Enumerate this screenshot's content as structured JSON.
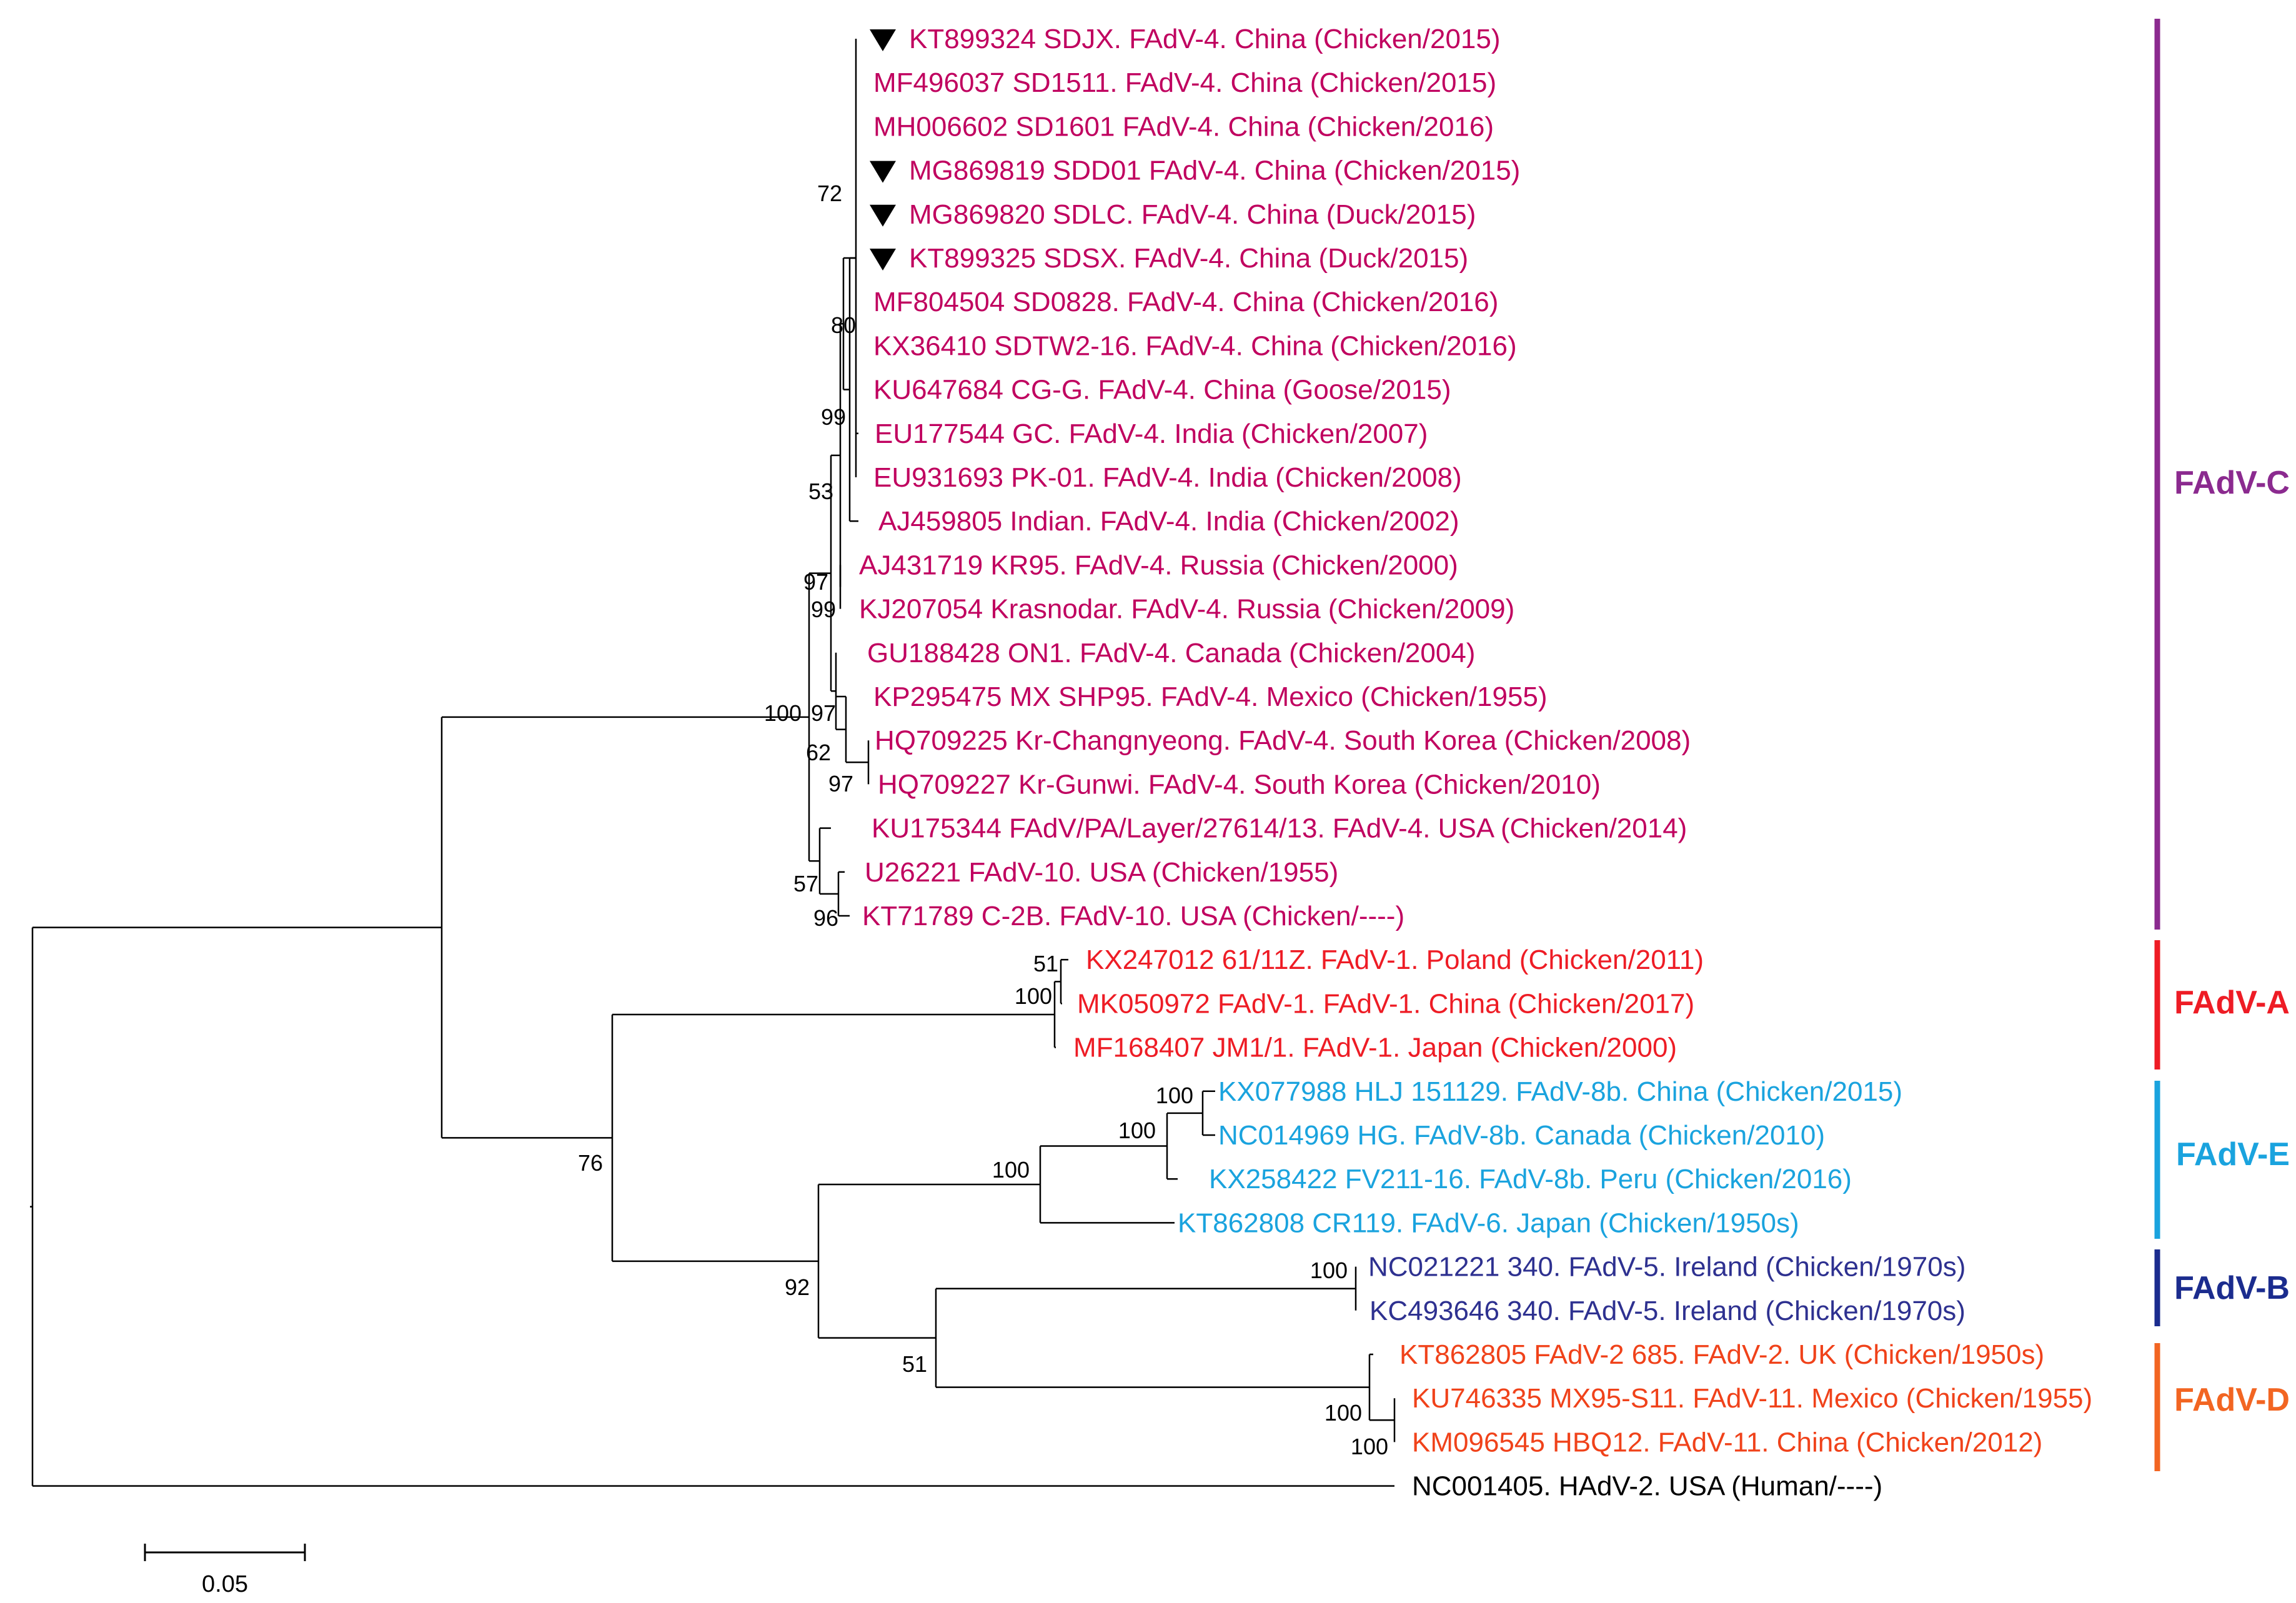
{
  "colors": {
    "FAdV-C": "#c0005f",
    "FAdV-A": "#ee1c25",
    "FAdV-E": "#1aa3de",
    "FAdV-B": "#2e3190",
    "FAdV-D": "#f0421a",
    "outgroup": "#000000",
    "bar_C": "#8b2a8f",
    "bar_A": "#ee1c25",
    "bar_E": "#1aa3de",
    "bar_B": "#1b2c8e",
    "bar_D": "#f26522"
  },
  "taxa": [
    {
      "label": "KT899324 SDJX. FAdV-4. China (Chicken/2015)",
      "group": "FAdV-C",
      "marker": true
    },
    {
      "label": "MF496037 SD1511. FAdV-4. China (Chicken/2015)",
      "group": "FAdV-C",
      "marker": false
    },
    {
      "label": "MH006602 SD1601 FAdV-4. China (Chicken/2016)",
      "group": "FAdV-C",
      "marker": false
    },
    {
      "label": "MG869819 SDD01 FAdV-4. China (Chicken/2015)",
      "group": "FAdV-C",
      "marker": true
    },
    {
      "label": "MG869820 SDLC. FAdV-4. China (Duck/2015)",
      "group": "FAdV-C",
      "marker": true
    },
    {
      "label": "KT899325 SDSX. FAdV-4. China (Duck/2015)",
      "group": "FAdV-C",
      "marker": true
    },
    {
      "label": "MF804504 SD0828. FAdV-4. China (Chicken/2016)",
      "group": "FAdV-C",
      "marker": false
    },
    {
      "label": "KX36410 SDTW2-16. FAdV-4. China (Chicken/2016)",
      "group": "FAdV-C",
      "marker": false
    },
    {
      "label": "KU647684 CG-G. FAdV-4. China (Goose/2015)",
      "group": "FAdV-C",
      "marker": false
    },
    {
      "label": "EU177544 GC. FAdV-4. India (Chicken/2007)",
      "group": "FAdV-C",
      "marker": false
    },
    {
      "label": "EU931693 PK-01. FAdV-4. India (Chicken/2008)",
      "group": "FAdV-C",
      "marker": false
    },
    {
      "label": "AJ459805 Indian. FAdV-4. India (Chicken/2002)",
      "group": "FAdV-C",
      "marker": false
    },
    {
      "label": "AJ431719 KR95. FAdV-4. Russia (Chicken/2000)",
      "group": "FAdV-C",
      "marker": false
    },
    {
      "label": "KJ207054 Krasnodar. FAdV-4. Russia (Chicken/2009)",
      "group": "FAdV-C",
      "marker": false
    },
    {
      "label": "GU188428 ON1. FAdV-4. Canada (Chicken/2004)",
      "group": "FAdV-C",
      "marker": false
    },
    {
      "label": "KP295475 MX SHP95. FAdV-4. Mexico (Chicken/1955)",
      "group": "FAdV-C",
      "marker": false
    },
    {
      "label": "HQ709225 Kr-Changnyeong. FAdV-4. South Korea (Chicken/2008)",
      "group": "FAdV-C",
      "marker": false
    },
    {
      "label": "HQ709227 Kr-Gunwi. FAdV-4. South Korea (Chicken/2010)",
      "group": "FAdV-C",
      "marker": false
    },
    {
      "label": "KU175344 FAdV/PA/Layer/27614/13. FAdV-4. USA (Chicken/2014)",
      "group": "FAdV-C",
      "marker": false
    },
    {
      "label": "U26221 FAdV-10. USA (Chicken/1955)",
      "group": "FAdV-C",
      "marker": false
    },
    {
      "label": "KT71789 C-2B. FAdV-10. USA (Chicken/----)",
      "group": "FAdV-C",
      "marker": false
    },
    {
      "label": "KX247012 61/11Z. FAdV-1. Poland (Chicken/2011)",
      "group": "FAdV-A",
      "marker": false
    },
    {
      "label": "MK050972 FAdV-1. FAdV-1. China (Chicken/2017)",
      "group": "FAdV-A",
      "marker": false
    },
    {
      "label": "MF168407 JM1/1. FAdV-1. Japan (Chicken/2000)",
      "group": "FAdV-A",
      "marker": false
    },
    {
      "label": "KX077988 HLJ 151129. FAdV-8b. China (Chicken/2015)",
      "group": "FAdV-E",
      "marker": false
    },
    {
      "label": "NC014969 HG. FAdV-8b. Canada (Chicken/2010)",
      "group": "FAdV-E",
      "marker": false
    },
    {
      "label": "KX258422 FV211-16. FAdV-8b. Peru (Chicken/2016)",
      "group": "FAdV-E",
      "marker": false
    },
    {
      "label": "KT862808 CR119. FAdV-6. Japan (Chicken/1950s)",
      "group": "FAdV-E",
      "marker": false
    },
    {
      "label": "NC021221 340. FAdV-5. Ireland (Chicken/1970s)",
      "group": "FAdV-B",
      "marker": false
    },
    {
      "label": "KC493646 340. FAdV-5. Ireland (Chicken/1970s)",
      "group": "FAdV-B",
      "marker": false
    },
    {
      "label": "KT862805 FAdV-2 685. FAdV-2. UK (Chicken/1950s)",
      "group": "FAdV-D",
      "marker": false
    },
    {
      "label": "KU746335 MX95-S11. FAdV-11. Mexico (Chicken/1955)",
      "group": "FAdV-D",
      "marker": false
    },
    {
      "label": "KM096545 HBQ12. FAdV-11. China (Chicken/2012)",
      "group": "FAdV-D",
      "marker": false
    },
    {
      "label": "NC001405. HAdV-2. USA (Human/----)",
      "group": "outgroup",
      "marker": false
    }
  ],
  "bootstrap": [
    "72",
    "80",
    "99",
    "53",
    "97",
    "99",
    "100",
    "97",
    "62",
    "97",
    "57",
    "96",
    "51",
    "100",
    "100",
    "100",
    "100",
    "76",
    "92",
    "100",
    "51",
    "100",
    "100"
  ],
  "clades": [
    {
      "name": "FAdV-C",
      "color_key": "bar_C"
    },
    {
      "name": "FAdV-A",
      "color_key": "bar_A"
    },
    {
      "name": "FAdV-E",
      "color_key": "bar_E"
    },
    {
      "name": "FAdV-B",
      "color_key": "bar_B"
    },
    {
      "name": "FAdV-D",
      "color_key": "bar_D"
    }
  ],
  "scale_bar": {
    "label": "0.05",
    "length": 0.05
  }
}
